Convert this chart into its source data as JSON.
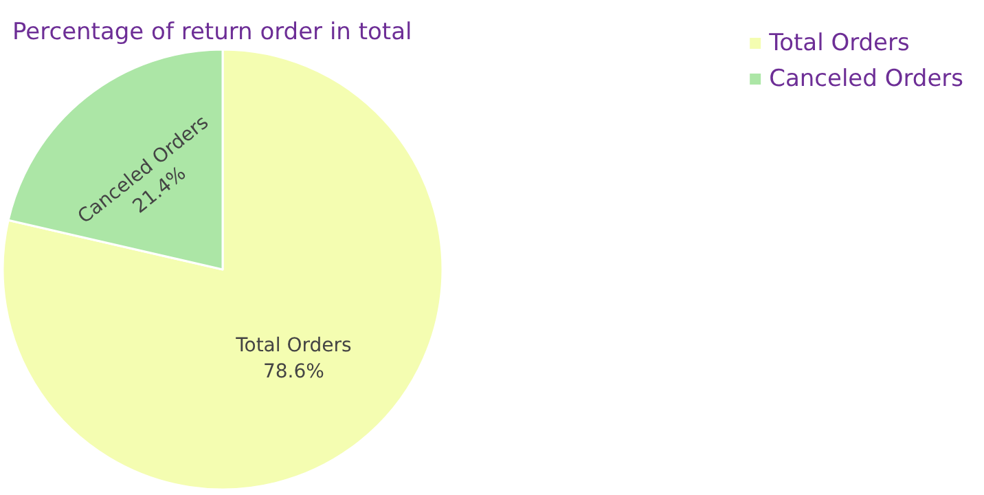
{
  "chart_data": {
    "type": "pie",
    "title": "Percentage of return order in total",
    "categories": [
      "Total Orders",
      "Canceled Orders"
    ],
    "values": [
      78.6,
      21.4
    ],
    "colors": [
      "#f4fdb1",
      "#ace6a6"
    ],
    "value_labels": [
      "78.6%",
      "21.4%"
    ],
    "legend": "top right"
  }
}
